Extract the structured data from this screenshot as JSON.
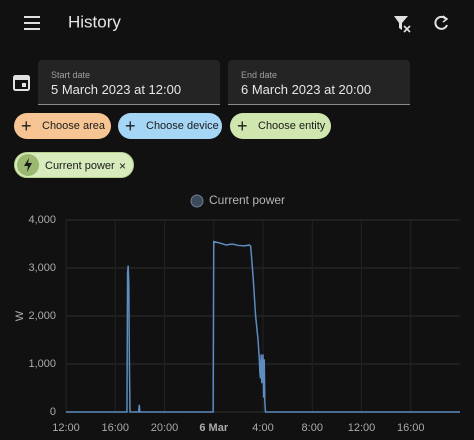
{
  "header": {
    "title": "History"
  },
  "date_range": {
    "start": {
      "label": "Start date",
      "value": "5 March 2023 at 12:00"
    },
    "end": {
      "label": "End date",
      "value": "6 March 2023 at 20:00"
    }
  },
  "targets": {
    "choose": [
      "Choose area",
      "Choose device",
      "Choose entity"
    ],
    "selected": [
      "Current power"
    ]
  },
  "chart_data": {
    "type": "line",
    "y_label": "W",
    "x": [
      0,
      4.95,
      5.0,
      5.05,
      5.1,
      5.15,
      5.2,
      5.3,
      5.9,
      5.95,
      6.0,
      6.05,
      11.95,
      12.0,
      12.5,
      13,
      13.5,
      14,
      14.5,
      14.9,
      15.0,
      15.2,
      15.4,
      15.6,
      15.7,
      15.75,
      15.8,
      15.85,
      15.9,
      16.0,
      16.05,
      16.1,
      16.15,
      16.2,
      16.25,
      32
    ],
    "series": [
      {
        "name": "Current power",
        "color": "#5d8cc0",
        "values": [
          0,
          0,
          2900,
          3050,
          2700,
          1000,
          0,
          0,
          0,
          150,
          0,
          0,
          0,
          3550,
          3520,
          3480,
          3500,
          3470,
          3460,
          3480,
          3450,
          2800,
          2000,
          1500,
          1100,
          800,
          700,
          1200,
          600,
          1200,
          300,
          1100,
          200,
          0,
          0,
          0
        ]
      }
    ],
    "xlim": [
      0,
      32
    ],
    "xticks": [
      {
        "value": 0,
        "label": "12:00"
      },
      {
        "value": 4,
        "label": "16:00"
      },
      {
        "value": 8,
        "label": "20:00"
      },
      {
        "value": 12,
        "label": "6 Mar"
      },
      {
        "value": 16,
        "label": "4:00"
      },
      {
        "value": 20,
        "label": "8:00"
      },
      {
        "value": 24,
        "label": "12:00"
      },
      {
        "value": 28,
        "label": "16:00"
      }
    ],
    "ylim": [
      0,
      4000
    ],
    "yticks": [
      0,
      {
        "value": 1000,
        "label": "1,000"
      },
      {
        "value": 2000,
        "label": "2,000"
      },
      {
        "value": 3000,
        "label": "3,000"
      },
      {
        "value": 4000,
        "label": "4,000"
      }
    ],
    "grid": true
  }
}
